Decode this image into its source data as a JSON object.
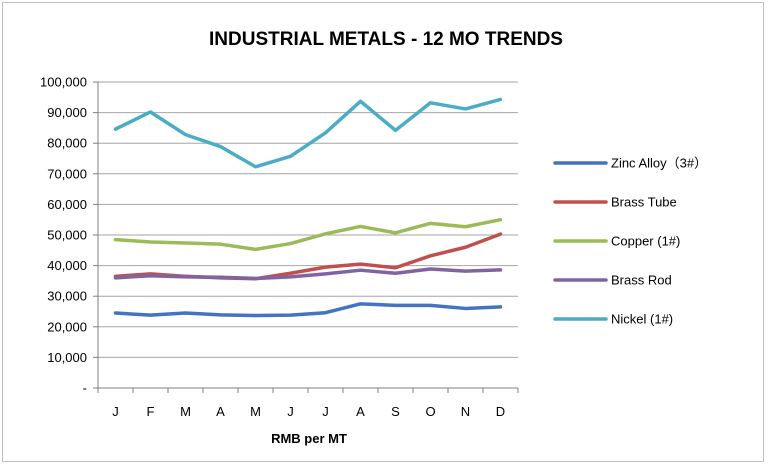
{
  "chart_data": {
    "type": "line",
    "title": "INDUSTRIAL METALS - 12 MO TRENDS",
    "xlabel": "RMB per MT",
    "ylabel": "",
    "categories": [
      "J",
      "F",
      "M",
      "A",
      "M",
      "J",
      "J",
      "A",
      "S",
      "O",
      "N",
      "D"
    ],
    "ylim": [
      0,
      100000
    ],
    "yticks": [
      0,
      10000,
      20000,
      30000,
      40000,
      50000,
      60000,
      70000,
      80000,
      90000,
      100000
    ],
    "ytick_labels": [
      "-",
      "10,000",
      "20,000",
      "30,000",
      "40,000",
      "50,000",
      "60,000",
      "70,000",
      "80,000",
      "90,000",
      "100,000"
    ],
    "grid": true,
    "legend_position": "right",
    "series": [
      {
        "name": "Zinc Alloy（3#）",
        "color": "#4472c4",
        "values": [
          24500,
          23800,
          24500,
          23900,
          23700,
          23800,
          24600,
          27500,
          27000,
          27000,
          26000,
          26500
        ]
      },
      {
        "name": "Brass Tube",
        "color": "#c0504d",
        "values": [
          36500,
          37300,
          36500,
          36000,
          35700,
          37500,
          39500,
          40500,
          39300,
          43200,
          46000,
          50300
        ]
      },
      {
        "name": "Copper (1#)",
        "color": "#9bbb59",
        "values": [
          48500,
          47700,
          47400,
          47000,
          45300,
          47200,
          50400,
          52800,
          50700,
          53800,
          52700,
          55000
        ]
      },
      {
        "name": "Brass Rod",
        "color": "#8064a2",
        "values": [
          36000,
          36700,
          36300,
          36200,
          35800,
          36300,
          37300,
          38500,
          37500,
          38900,
          38200,
          38600
        ]
      },
      {
        "name": "Nickel (1#)",
        "color": "#4bacc6",
        "values": [
          84600,
          90200,
          82800,
          78900,
          72300,
          75700,
          83400,
          93700,
          84200,
          93200,
          91200,
          94300
        ]
      }
    ]
  }
}
